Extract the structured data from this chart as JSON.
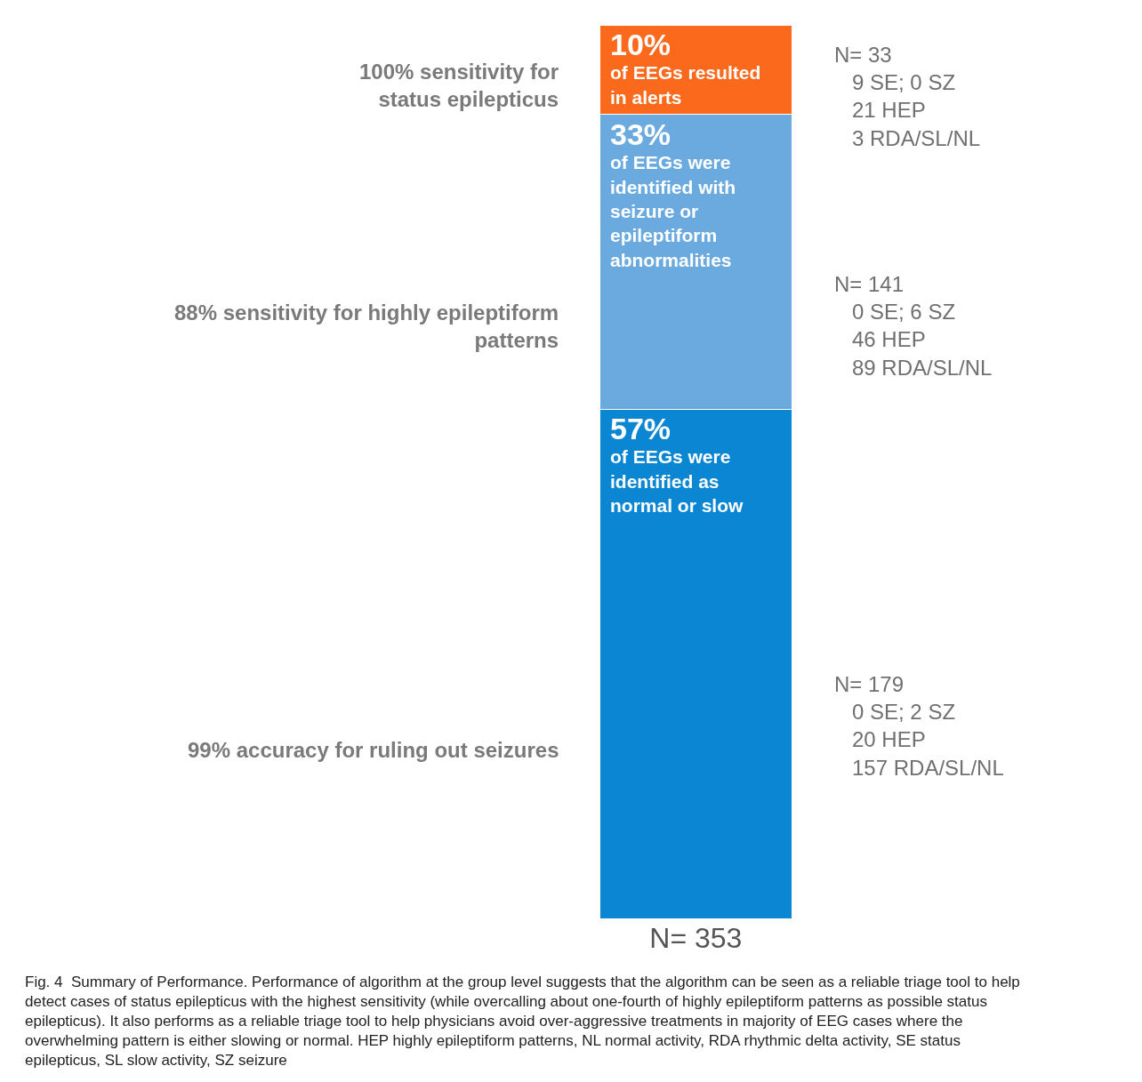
{
  "chart_data": {
    "type": "bar",
    "stacked": true,
    "categories": [
      "N= 353"
    ],
    "series": [
      {
        "color": "#0a86d2",
        "values": [
          57
        ],
        "value_labels": [
          "57%\nof EEGs were\nidentified as\nnormal or slow"
        ]
      },
      {
        "color": "#6aaadf",
        "values": [
          33
        ],
        "value_labels": [
          "33%\nof EEGs were\nidentified with\nseizure or\nepileptiform\nabnormalities"
        ]
      },
      {
        "color": "#fb6a1c",
        "values": [
          10
        ],
        "value_labels": [
          "10%\nof EEGs resulted\nin alerts"
        ]
      }
    ],
    "annotations": [
      "100% sensitivity for\nstatus epilepticus",
      "N= 33\n   9 SE; 0 SZ\n   21 HEP\n   3 RDA/SL/NL",
      "88% sensitivity for highly epileptiform\npatterns",
      "N= 141\n   0 SE; 6 SZ\n   46 HEP\n   89 RDA/SL/NL",
      "99% accuracy for ruling out seizures",
      "N= 179\n   0 SE; 2 SZ\n   20 HEP\n   157 RDA/SL/NL",
      "Fig. 4  Summary of Performance. Performance of algorithm at the group level suggests that the algorithm can be seen as a reliable triage tool to help detect cases of status epilepticus with the highest sensitivity (while overcalling about one-fourth of highly epileptiform patterns as possible status epilepticus). It also performs as a reliable triage tool to help physicians avoid over-aggressive treatments in majority of EEG cases where the overwhelming pattern is either slowing or normal. HEP highly epileptiform patterns, NL normal activity, RDA rhythmic delta activity, SE status epilepticus, SL slow activity, SZ seizure"
    ]
  }
}
